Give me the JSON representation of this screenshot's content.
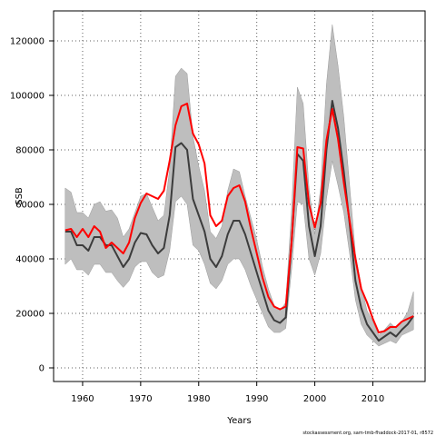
{
  "chart_data": {
    "type": "line",
    "xlabel": "Years",
    "ylabel": "SSB",
    "xlim": [
      1955,
      2019
    ],
    "ylim": [
      -5000,
      131000
    ],
    "x_ticks": [
      1960,
      1970,
      1980,
      1990,
      2000,
      2010
    ],
    "y_ticks": [
      0,
      20000,
      40000,
      60000,
      80000,
      100000,
      120000
    ],
    "grid": true,
    "credit": "stockassessment.org, sam-tmb-fhaddock-2017-01, r8572",
    "colors": {
      "band": "#bebebe",
      "estimate": "#3c3c3c",
      "comparison": "#ff0000",
      "grid": "#606060"
    },
    "years": [
      1957,
      1958,
      1959,
      1960,
      1961,
      1962,
      1963,
      1964,
      1965,
      1966,
      1967,
      1968,
      1969,
      1970,
      1971,
      1972,
      1973,
      1974,
      1975,
      1976,
      1977,
      1978,
      1979,
      1980,
      1981,
      1982,
      1983,
      1984,
      1985,
      1986,
      1987,
      1988,
      1989,
      1990,
      1991,
      1992,
      1993,
      1994,
      1995,
      1996,
      1997,
      1998,
      1999,
      2000,
      2001,
      2002,
      2003,
      2004,
      2005,
      2006,
      2007,
      2008,
      2009,
      2010,
      2011,
      2012,
      2013,
      2014,
      2015,
      2016,
      2017
    ],
    "series": [
      {
        "name": "",
        "color": "#3c3c3c",
        "values": [
          50000,
          50000,
          45000,
          45000,
          43000,
          48000,
          48000,
          45000,
          45000,
          41000,
          37000,
          40000,
          46000,
          49500,
          49000,
          45000,
          42000,
          44000,
          56000,
          81000,
          82500,
          80000,
          62000,
          56000,
          50000,
          40000,
          37000,
          41000,
          49000,
          54000,
          54000,
          49000,
          42000,
          35000,
          28000,
          21000,
          17500,
          16500,
          18500,
          46000,
          78500,
          76000,
          52000,
          41000,
          52000,
          80000,
          98000,
          88000,
          72000,
          53000,
          32000,
          22000,
          16000,
          13000,
          10000,
          11500,
          13000,
          11500,
          14000,
          16000,
          19000
        ]
      },
      {
        "name": "",
        "color": "#ff0000",
        "values": [
          50500,
          51000,
          48000,
          51000,
          48000,
          52000,
          50000,
          44000,
          46000,
          44000,
          42000,
          46000,
          55000,
          60500,
          64000,
          63000,
          62000,
          65000,
          76000,
          89000,
          96000,
          97000,
          86000,
          82000,
          75000,
          56000,
          52000,
          54000,
          63000,
          66000,
          67000,
          61000,
          51000,
          42000,
          33000,
          26000,
          22500,
          21500,
          22500,
          46000,
          81000,
          80500,
          60000,
          51500,
          60500,
          83500,
          95000,
          84000,
          68000,
          54000,
          40000,
          29000,
          24000,
          18000,
          13000,
          13500,
          15000,
          15000,
          17000,
          18000,
          19000
        ]
      }
    ],
    "band": {
      "lower": [
        38000,
        40000,
        36000,
        36000,
        34000,
        38000,
        38000,
        35000,
        35000,
        32000,
        29500,
        32000,
        37000,
        39000,
        39000,
        35000,
        33000,
        34000,
        43000,
        61000,
        63000,
        60000,
        45000,
        43000,
        38000,
        31000,
        29000,
        32000,
        38000,
        40000,
        40000,
        36000,
        30000,
        25000,
        20000,
        15000,
        13000,
        13000,
        14500,
        36000,
        61000,
        60000,
        40000,
        34000,
        42000,
        62000,
        76000,
        67000,
        57000,
        42000,
        25000,
        16000,
        12000,
        10000,
        8000,
        9000,
        10000,
        9000,
        12000,
        13000,
        14000
      ],
      "upper": [
        66000,
        64500,
        57000,
        57000,
        55000,
        60000,
        61000,
        57500,
        58000,
        55000,
        48000,
        51000,
        57000,
        63000,
        64000,
        59000,
        54000,
        56000,
        73000,
        107000,
        110000,
        108000,
        85000,
        74000,
        65000,
        50000,
        47500,
        52000,
        65000,
        73000,
        72000,
        63000,
        55000,
        47000,
        37000,
        29000,
        23000,
        21000,
        24000,
        58000,
        103000,
        97000,
        66000,
        49000,
        66000,
        104000,
        126000,
        111000,
        92000,
        67000,
        42000,
        30000,
        21000,
        17000,
        12000,
        14000,
        16500,
        14500,
        17000,
        20500,
        28000
      ]
    }
  }
}
